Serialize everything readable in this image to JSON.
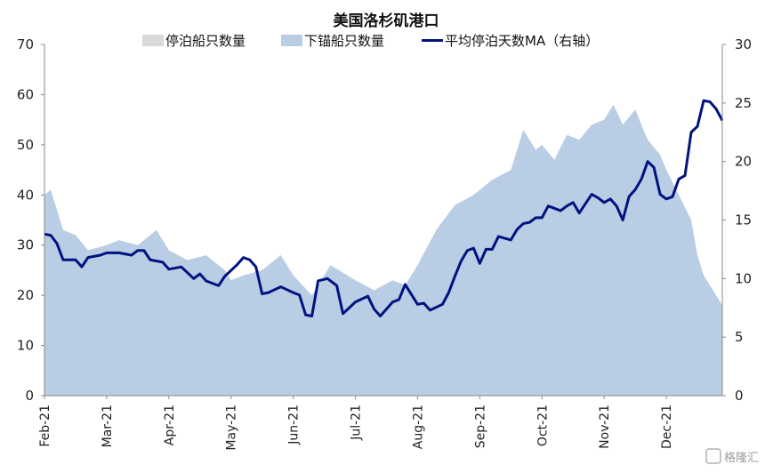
{
  "chart_data": {
    "type": "area",
    "title": "美国洛杉矶港口",
    "legend_position": "top",
    "grid": false,
    "left_axis": {
      "ylim": [
        0,
        70
      ],
      "ticks": [
        0,
        10,
        20,
        30,
        40,
        50,
        60,
        70
      ]
    },
    "right_axis": {
      "ylim": [
        0,
        30
      ],
      "ticks": [
        0,
        5,
        10,
        15,
        20,
        25,
        30
      ]
    },
    "x_months": [
      "Feb-21",
      "Mar-21",
      "Apr-21",
      "May-21",
      "Jun-21",
      "Jul-21",
      "Aug-21",
      "Sep-21",
      "Oct-21",
      "Nov-21",
      "Dec-21"
    ],
    "x_range_months": [
      0,
      10.9
    ],
    "series": [
      {
        "name": "停泊船只数量",
        "kind": "area",
        "axis": "left",
        "color": "#d9d9d9",
        "points": [
          [
            0,
            17
          ],
          [
            0.3,
            17
          ],
          [
            0.5,
            15
          ],
          [
            0.7,
            17
          ],
          [
            1,
            16
          ],
          [
            1.3,
            17
          ],
          [
            1.6,
            15
          ],
          [
            2,
            17
          ],
          [
            2.3,
            15
          ],
          [
            2.6,
            16
          ],
          [
            3,
            17
          ],
          [
            3.3,
            15
          ],
          [
            3.6,
            16
          ],
          [
            4,
            16
          ],
          [
            4.15,
            12
          ],
          [
            4.3,
            14
          ],
          [
            4.6,
            15
          ],
          [
            5,
            16
          ],
          [
            5.3,
            15
          ],
          [
            5.6,
            16
          ],
          [
            6,
            17
          ],
          [
            6.3,
            16
          ],
          [
            6.6,
            17
          ],
          [
            7,
            17
          ],
          [
            7.3,
            16
          ],
          [
            7.6,
            17
          ],
          [
            8,
            17
          ],
          [
            8.3,
            16
          ],
          [
            8.6,
            17
          ],
          [
            9,
            17
          ],
          [
            9.3,
            16
          ],
          [
            9.6,
            17
          ],
          [
            10,
            17
          ],
          [
            10.3,
            15
          ],
          [
            10.6,
            17
          ],
          [
            10.9,
            17
          ]
        ]
      },
      {
        "name": "下锚船只数量",
        "kind": "area",
        "axis": "left",
        "color": "#b9cde5",
        "points": [
          [
            0,
            40
          ],
          [
            0.1,
            41
          ],
          [
            0.3,
            33
          ],
          [
            0.5,
            32
          ],
          [
            0.7,
            29
          ],
          [
            1,
            30
          ],
          [
            1.2,
            31
          ],
          [
            1.5,
            30
          ],
          [
            1.8,
            33
          ],
          [
            2,
            29
          ],
          [
            2.3,
            27
          ],
          [
            2.6,
            28
          ],
          [
            2.9,
            25
          ],
          [
            3,
            23
          ],
          [
            3.2,
            24
          ],
          [
            3.5,
            25
          ],
          [
            3.8,
            28
          ],
          [
            4,
            24
          ],
          [
            4.3,
            20
          ],
          [
            4.6,
            26
          ],
          [
            5,
            23
          ],
          [
            5.3,
            21
          ],
          [
            5.6,
            23
          ],
          [
            5.8,
            22
          ],
          [
            6,
            26
          ],
          [
            6.3,
            33
          ],
          [
            6.6,
            38
          ],
          [
            6.9,
            40
          ],
          [
            7.2,
            43
          ],
          [
            7.5,
            45
          ],
          [
            7.7,
            53
          ],
          [
            7.9,
            49
          ],
          [
            8,
            50
          ],
          [
            8.2,
            47
          ],
          [
            8.4,
            52
          ],
          [
            8.6,
            51
          ],
          [
            8.8,
            54
          ],
          [
            9,
            55
          ],
          [
            9.15,
            58
          ],
          [
            9.3,
            54
          ],
          [
            9.5,
            57
          ],
          [
            9.7,
            51
          ],
          [
            9.9,
            48
          ],
          [
            10,
            45
          ],
          [
            10.2,
            40
          ],
          [
            10.4,
            35
          ],
          [
            10.5,
            28
          ],
          [
            10.6,
            24
          ],
          [
            10.75,
            21
          ],
          [
            10.9,
            18
          ]
        ]
      },
      {
        "name": "平均停泊天数MA（右轴）",
        "kind": "line",
        "axis": "right",
        "color": "#00137f",
        "points": [
          [
            0,
            13.8
          ],
          [
            0.1,
            13.7
          ],
          [
            0.2,
            13.0
          ],
          [
            0.3,
            11.6
          ],
          [
            0.5,
            11.6
          ],
          [
            0.6,
            11.0
          ],
          [
            0.7,
            11.8
          ],
          [
            0.9,
            12.0
          ],
          [
            1.0,
            12.2
          ],
          [
            1.2,
            12.2
          ],
          [
            1.4,
            12.0
          ],
          [
            1.5,
            12.4
          ],
          [
            1.6,
            12.4
          ],
          [
            1.7,
            11.6
          ],
          [
            1.9,
            11.4
          ],
          [
            2.0,
            10.8
          ],
          [
            2.2,
            11.0
          ],
          [
            2.4,
            10.0
          ],
          [
            2.5,
            10.4
          ],
          [
            2.6,
            9.8
          ],
          [
            2.8,
            9.4
          ],
          [
            2.9,
            10.2
          ],
          [
            3.1,
            11.2
          ],
          [
            3.2,
            11.8
          ],
          [
            3.3,
            11.6
          ],
          [
            3.4,
            11.0
          ],
          [
            3.5,
            8.7
          ],
          [
            3.6,
            8.8
          ],
          [
            3.8,
            9.3
          ],
          [
            4.0,
            8.8
          ],
          [
            4.1,
            8.6
          ],
          [
            4.2,
            6.9
          ],
          [
            4.3,
            6.8
          ],
          [
            4.4,
            9.8
          ],
          [
            4.55,
            10.0
          ],
          [
            4.7,
            9.4
          ],
          [
            4.8,
            7.0
          ],
          [
            4.9,
            7.5
          ],
          [
            5.0,
            8.0
          ],
          [
            5.2,
            8.5
          ],
          [
            5.3,
            7.4
          ],
          [
            5.4,
            6.8
          ],
          [
            5.6,
            8.0
          ],
          [
            5.7,
            8.2
          ],
          [
            5.8,
            9.5
          ],
          [
            6.0,
            7.8
          ],
          [
            6.1,
            7.9
          ],
          [
            6.2,
            7.3
          ],
          [
            6.4,
            7.8
          ],
          [
            6.5,
            8.8
          ],
          [
            6.6,
            10.2
          ],
          [
            6.7,
            11.5
          ],
          [
            6.8,
            12.4
          ],
          [
            6.9,
            12.6
          ],
          [
            7.0,
            11.3
          ],
          [
            7.1,
            12.5
          ],
          [
            7.2,
            12.5
          ],
          [
            7.3,
            13.6
          ],
          [
            7.5,
            13.3
          ],
          [
            7.6,
            14.2
          ],
          [
            7.7,
            14.7
          ],
          [
            7.8,
            14.8
          ],
          [
            7.9,
            15.2
          ],
          [
            8.0,
            15.2
          ],
          [
            8.1,
            16.2
          ],
          [
            8.2,
            16.0
          ],
          [
            8.3,
            15.8
          ],
          [
            8.4,
            16.2
          ],
          [
            8.5,
            16.5
          ],
          [
            8.6,
            15.6
          ],
          [
            8.7,
            16.4
          ],
          [
            8.8,
            17.2
          ],
          [
            8.9,
            16.9
          ],
          [
            9.0,
            16.5
          ],
          [
            9.1,
            16.8
          ],
          [
            9.2,
            16.2
          ],
          [
            9.3,
            15.0
          ],
          [
            9.4,
            17.0
          ],
          [
            9.5,
            17.6
          ],
          [
            9.6,
            18.5
          ],
          [
            9.7,
            20.0
          ],
          [
            9.8,
            19.5
          ],
          [
            9.9,
            17.2
          ],
          [
            10.0,
            16.8
          ],
          [
            10.1,
            17.0
          ],
          [
            10.2,
            18.5
          ],
          [
            10.3,
            18.8
          ],
          [
            10.4,
            22.5
          ],
          [
            10.5,
            23.0
          ],
          [
            10.6,
            25.2
          ],
          [
            10.7,
            25.1
          ],
          [
            10.8,
            24.5
          ],
          [
            10.9,
            23.5
          ]
        ]
      }
    ]
  },
  "watermark": "格隆汇"
}
